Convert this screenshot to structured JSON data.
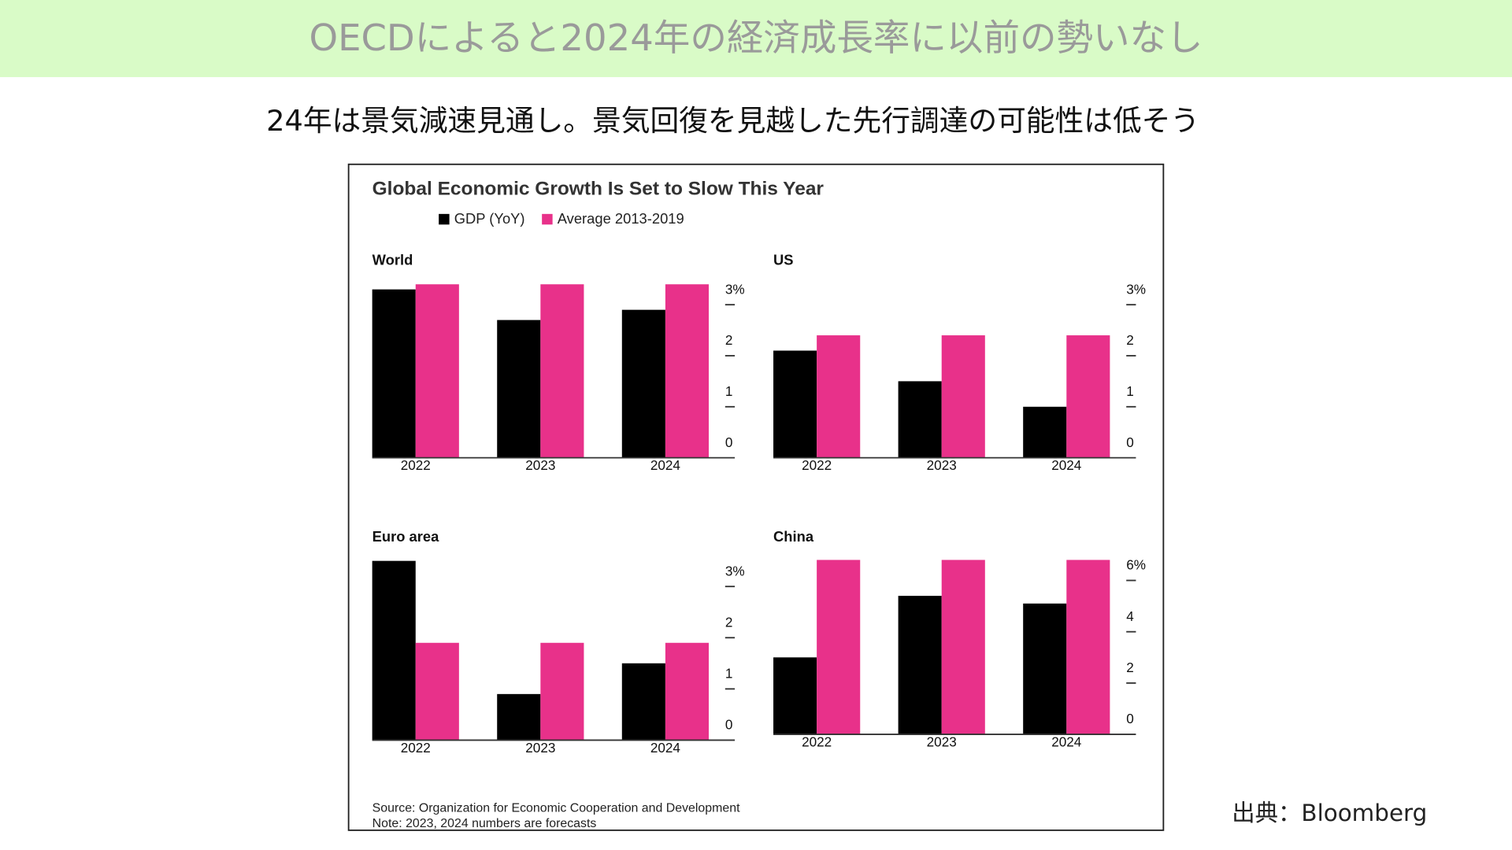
{
  "header": "OECDによると2024年の経済成長率に以前の勢いなし",
  "subtitle": "24年は景気減速見通し。景気回復を見越した先行調達の可能性は低そう",
  "chart_title": "Global Economic Growth Is Set to Slow This Year",
  "legend": [
    {
      "name": "GDP (YoY)",
      "color": "#000000"
    },
    {
      "name": "Average 2013-2019",
      "color": "#e8318a"
    }
  ],
  "chart_data": [
    {
      "type": "bar",
      "title": "World",
      "categories": [
        "2022",
        "2023",
        "2024"
      ],
      "series": [
        {
          "values": [
            3.3,
            2.7,
            2.9
          ]
        },
        {
          "values": [
            3.4,
            3.4,
            3.4
          ]
        }
      ],
      "ylim": [
        0,
        3.4
      ],
      "yticks": [
        0,
        1,
        2,
        {
          "value": 3,
          "label": "3%"
        }
      ]
    },
    {
      "type": "bar",
      "title": "US",
      "categories": [
        "2022",
        "2023",
        "2024"
      ],
      "series": [
        {
          "values": [
            2.1,
            1.5,
            1.0
          ]
        },
        {
          "values": [
            2.4,
            2.4,
            2.4
          ]
        }
      ],
      "ylim": [
        0,
        3.4
      ],
      "yticks": [
        0,
        1,
        2,
        {
          "value": 3,
          "label": "3%"
        }
      ]
    },
    {
      "type": "bar",
      "title": "Euro area",
      "categories": [
        "2022",
        "2023",
        "2024"
      ],
      "series": [
        {
          "values": [
            3.5,
            0.9,
            1.5
          ]
        },
        {
          "values": [
            1.9,
            1.9,
            1.9
          ]
        }
      ],
      "ylim": [
        0,
        3.5
      ],
      "yticks": [
        0,
        1,
        2,
        {
          "value": 3,
          "label": "3%"
        }
      ]
    },
    {
      "type": "bar",
      "title": "China",
      "categories": [
        "2022",
        "2023",
        "2024"
      ],
      "series": [
        {
          "values": [
            3.0,
            5.4,
            5.1
          ]
        },
        {
          "values": [
            6.8,
            6.8,
            6.8
          ]
        }
      ],
      "ylim": [
        0,
        6.8
      ],
      "yticks": [
        0,
        2,
        4,
        {
          "value": 6,
          "label": "6%"
        }
      ]
    }
  ],
  "source": "Source: Organization for Economic Cooperation and Development",
  "note": "Note: 2023, 2024 numbers are forecasts",
  "credit": "出典：Bloomberg"
}
